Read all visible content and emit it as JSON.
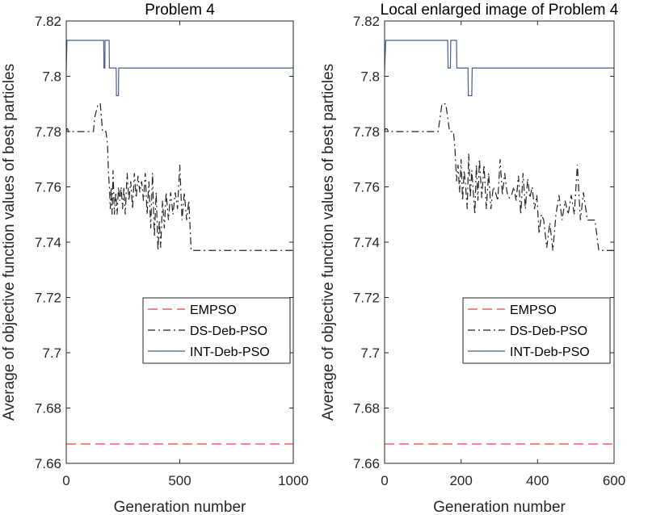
{
  "chart_data": [
    {
      "type": "line",
      "title": "Problem 4",
      "xlabel": "Generation number",
      "ylabel": "Average of objective function values of best particles",
      "xlim": [
        0,
        1000
      ],
      "ylim": [
        7.66,
        7.82
      ],
      "xticks": [
        0,
        500,
        1000
      ],
      "xtick_labels": [
        "0",
        "500",
        "1000"
      ],
      "yticks": [
        7.66,
        7.68,
        7.7,
        7.72,
        7.74,
        7.76,
        7.78,
        7.8,
        7.82
      ],
      "ytick_labels": [
        "7.66",
        "7.68",
        "7.7",
        "7.72",
        "7.74",
        "7.76",
        "7.78",
        "7.8",
        "7.82"
      ],
      "legend_position": "lower-right",
      "series": [
        {
          "name": "EMPSO",
          "color": "#ff3b3b",
          "style": "dashed",
          "x": [
            0,
            1000
          ],
          "y": [
            7.667,
            7.667
          ]
        },
        {
          "name": "DS-Deb-PSO",
          "color": "#222222",
          "style": "dashdot",
          "x": [
            0,
            2,
            6,
            10,
            120,
            125,
            140,
            150,
            160,
            175,
            182,
            186,
            190,
            194,
            198,
            202,
            206,
            212,
            218,
            224,
            230,
            236,
            242,
            248,
            254,
            260,
            268,
            276,
            284,
            292,
            300,
            308,
            316,
            324,
            332,
            340,
            348,
            356,
            364,
            372,
            380,
            388,
            396,
            404,
            410,
            416,
            424,
            432,
            440,
            450,
            460,
            470,
            480,
            490,
            500,
            510,
            520,
            530,
            540,
            550,
            1000
          ],
          "y": [
            7.78,
            7.781,
            7.781,
            7.78,
            7.78,
            7.785,
            7.79,
            7.79,
            7.78,
            7.78,
            7.775,
            7.765,
            7.76,
            7.752,
            7.76,
            7.75,
            7.766,
            7.75,
            7.758,
            7.75,
            7.76,
            7.755,
            7.76,
            7.752,
            7.76,
            7.75,
            7.765,
            7.755,
            7.762,
            7.752,
            7.765,
            7.756,
            7.764,
            7.758,
            7.762,
            7.755,
            7.765,
            7.75,
            7.762,
            7.745,
            7.765,
            7.742,
            7.758,
            7.737,
            7.748,
            7.738,
            7.755,
            7.745,
            7.758,
            7.748,
            7.758,
            7.75,
            7.758,
            7.752,
            7.768,
            7.748,
            7.758,
            7.748,
            7.755,
            7.737,
            7.737
          ]
        },
        {
          "name": "INT-Deb-PSO",
          "color": "#4a5f8c",
          "style": "solid",
          "x": [
            0,
            3,
            6,
            165,
            166,
            170,
            171,
            189,
            190,
            220,
            221,
            230,
            231,
            1000
          ],
          "y": [
            7.802,
            7.813,
            7.813,
            7.813,
            7.803,
            7.803,
            7.813,
            7.813,
            7.803,
            7.803,
            7.793,
            7.793,
            7.803,
            7.803
          ]
        }
      ]
    },
    {
      "type": "line",
      "title": "Local enlarged image of Problem 4",
      "xlabel": "Generation number",
      "ylabel": "Average of objective function values of best particles",
      "xlim": [
        0,
        600
      ],
      "ylim": [
        7.66,
        7.82
      ],
      "xticks": [
        0,
        200,
        400,
        600
      ],
      "xtick_labels": [
        "0",
        "200",
        "400",
        "600"
      ],
      "yticks": [
        7.66,
        7.68,
        7.7,
        7.72,
        7.74,
        7.76,
        7.78,
        7.8,
        7.82
      ],
      "ytick_labels": [
        "7.66",
        "7.68",
        "7.7",
        "7.72",
        "7.74",
        "7.76",
        "7.78",
        "7.8",
        "7.82"
      ],
      "legend_position": "lower-right",
      "series": [
        {
          "name": "EMPSO",
          "color": "#ff3b3b",
          "style": "dashed",
          "x": [
            0,
            600
          ],
          "y": [
            7.667,
            7.667
          ]
        },
        {
          "name": "DS-Deb-PSO",
          "color": "#222222",
          "style": "dashdot",
          "x": [
            0,
            2,
            6,
            10,
            140,
            150,
            160,
            170,
            175,
            180,
            184,
            188,
            192,
            196,
            200,
            204,
            208,
            212,
            216,
            220,
            224,
            228,
            232,
            236,
            240,
            244,
            248,
            254,
            260,
            266,
            272,
            278,
            284,
            290,
            296,
            302,
            308,
            314,
            320,
            326,
            332,
            338,
            344,
            350,
            356,
            362,
            368,
            374,
            380,
            386,
            392,
            398,
            404,
            410,
            416,
            424,
            432,
            440,
            448,
            456,
            464,
            472,
            480,
            488,
            496,
            504,
            512,
            520,
            530,
            540,
            550,
            560,
            600
          ],
          "y": [
            7.78,
            7.781,
            7.781,
            7.78,
            7.78,
            7.79,
            7.79,
            7.78,
            7.78,
            7.78,
            7.774,
            7.762,
            7.768,
            7.758,
            7.77,
            7.755,
            7.766,
            7.76,
            7.752,
            7.772,
            7.756,
            7.766,
            7.758,
            7.75,
            7.768,
            7.755,
            7.77,
            7.756,
            7.768,
            7.752,
            7.765,
            7.752,
            7.76,
            7.758,
            7.755,
            7.77,
            7.757,
            7.765,
            7.758,
            7.756,
            7.757,
            7.76,
            7.755,
            7.764,
            7.75,
            7.765,
            7.752,
            7.763,
            7.756,
            7.76,
            7.752,
            7.757,
            7.743,
            7.75,
            7.748,
            7.738,
            7.747,
            7.737,
            7.75,
            7.757,
            7.748,
            7.755,
            7.75,
            7.757,
            7.75,
            7.768,
            7.748,
            7.758,
            7.748,
            7.748,
            7.748,
            7.737,
            7.737
          ]
        },
        {
          "name": "INT-Deb-PSO",
          "color": "#4a5f8c",
          "style": "solid",
          "x": [
            0,
            3,
            6,
            165,
            166,
            172,
            173,
            188,
            189,
            218,
            219,
            228,
            229,
            600
          ],
          "y": [
            7.802,
            7.813,
            7.813,
            7.813,
            7.803,
            7.803,
            7.813,
            7.813,
            7.803,
            7.803,
            7.793,
            7.793,
            7.803,
            7.803
          ]
        }
      ]
    }
  ]
}
